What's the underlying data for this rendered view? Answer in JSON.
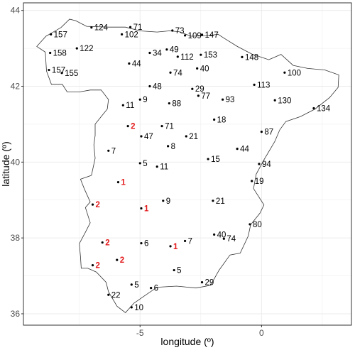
{
  "chart_data": {
    "type": "scatter",
    "title": "",
    "xlabel": "longitude (º)",
    "ylabel": "latitude (º)",
    "xlim": [
      -9.8,
      3.7
    ],
    "ylim": [
      35.7,
      44.2
    ],
    "xticks": [
      -5,
      0
    ],
    "yticks": [
      36,
      38,
      40,
      42,
      44
    ],
    "x_tick_labels": [
      "-5",
      "0"
    ],
    "y_tick_labels": [
      "36",
      "38",
      "40",
      "42",
      "44"
    ],
    "grid": true,
    "background": "#ffffff",
    "colors": {
      "point": "#000000",
      "label_default": "#000000",
      "label_highlight": "#e31a1c",
      "grid": "#ebebeb",
      "outline": "#333333"
    },
    "coastline": [
      [
        -8.87,
        43.32
      ],
      [
        -8.6,
        43.42
      ],
      [
        -8.25,
        43.55
      ],
      [
        -7.9,
        43.77
      ],
      [
        -7.65,
        43.73
      ],
      [
        -7.2,
        43.58
      ],
      [
        -6.3,
        43.56
      ],
      [
        -5.6,
        43.56
      ],
      [
        -5.0,
        43.46
      ],
      [
        -4.3,
        43.43
      ],
      [
        -3.8,
        43.46
      ],
      [
        -3.4,
        43.44
      ],
      [
        -2.9,
        43.32
      ],
      [
        -2.3,
        43.33
      ],
      [
        -1.79,
        43.37
      ],
      [
        -1.5,
        43.25
      ],
      [
        -1.0,
        43.05
      ],
      [
        -0.4,
        42.85
      ],
      [
        0.3,
        42.7
      ],
      [
        0.8,
        42.84
      ],
      [
        1.3,
        42.55
      ],
      [
        1.9,
        42.47
      ],
      [
        2.6,
        42.43
      ],
      [
        3.18,
        42.3
      ],
      [
        3.15,
        41.97
      ],
      [
        2.8,
        41.7
      ],
      [
        2.2,
        41.4
      ],
      [
        1.6,
        41.2
      ],
      [
        1.0,
        41.07
      ],
      [
        0.75,
        40.85
      ],
      [
        0.55,
        40.55
      ],
      [
        0.1,
        40.06
      ],
      [
        -0.22,
        39.68
      ],
      [
        -0.33,
        39.3
      ],
      [
        0.1,
        38.87
      ],
      [
        -0.07,
        38.65
      ],
      [
        -0.45,
        38.35
      ],
      [
        -0.55,
        38.05
      ],
      [
        -0.88,
        37.6
      ],
      [
        -1.3,
        37.55
      ],
      [
        -1.75,
        37.15
      ],
      [
        -2.1,
        36.75
      ],
      [
        -2.7,
        36.68
      ],
      [
        -3.5,
        36.73
      ],
      [
        -4.3,
        36.7
      ],
      [
        -4.8,
        36.48
      ],
      [
        -5.25,
        36.28
      ],
      [
        -5.6,
        36.03
      ],
      [
        -5.95,
        36.2
      ],
      [
        -6.3,
        36.58
      ],
      [
        -6.4,
        36.83
      ],
      [
        -6.8,
        37.1
      ],
      [
        -7.15,
        37.2
      ],
      [
        -7.42,
        37.2
      ],
      [
        -7.45,
        37.5
      ],
      [
        -7.5,
        37.85
      ],
      [
        -7.25,
        38.15
      ],
      [
        -7.05,
        38.4
      ],
      [
        -7.25,
        38.8
      ],
      [
        -7.05,
        38.95
      ],
      [
        -7.3,
        39.3
      ],
      [
        -7.45,
        39.55
      ],
      [
        -7.0,
        39.65
      ],
      [
        -6.85,
        40.1
      ],
      [
        -6.9,
        40.45
      ],
      [
        -6.85,
        40.7
      ],
      [
        -6.85,
        41.0
      ],
      [
        -6.6,
        41.2
      ],
      [
        -6.35,
        41.4
      ],
      [
        -6.3,
        41.65
      ],
      [
        -6.6,
        41.9
      ],
      [
        -7.05,
        41.9
      ],
      [
        -7.5,
        41.85
      ],
      [
        -8.0,
        41.85
      ],
      [
        -8.2,
        42.05
      ],
      [
        -8.65,
        42.05
      ],
      [
        -8.85,
        42.4
      ],
      [
        -8.9,
        42.9
      ],
      [
        -9.25,
        43.05
      ],
      [
        -8.87,
        43.32
      ]
    ],
    "points": [
      {
        "lon": -8.67,
        "lat": 43.37,
        "label": "157",
        "highlight": false
      },
      {
        "lon": -7.0,
        "lat": 43.55,
        "label": "124",
        "highlight": false
      },
      {
        "lon": -5.4,
        "lat": 43.56,
        "label": "71",
        "highlight": false
      },
      {
        "lon": -5.75,
        "lat": 43.37,
        "label": "102",
        "highlight": false
      },
      {
        "lon": -3.67,
        "lat": 43.47,
        "label": "73",
        "highlight": false
      },
      {
        "lon": -3.15,
        "lat": 43.34,
        "label": "109",
        "highlight": false
      },
      {
        "lon": -2.45,
        "lat": 43.36,
        "label": "147",
        "highlight": false
      },
      {
        "lon": -8.7,
        "lat": 42.88,
        "label": "158",
        "highlight": false
      },
      {
        "lon": -7.6,
        "lat": 43.0,
        "label": "122",
        "highlight": false
      },
      {
        "lon": -8.75,
        "lat": 42.43,
        "label": "157",
        "highlight": false
      },
      {
        "lon": -8.22,
        "lat": 42.35,
        "label": "155",
        "highlight": false
      },
      {
        "lon": -5.45,
        "lat": 42.6,
        "label": "44",
        "highlight": false
      },
      {
        "lon": -4.6,
        "lat": 42.88,
        "label": "34",
        "highlight": false
      },
      {
        "lon": -3.9,
        "lat": 42.97,
        "label": "49",
        "highlight": false
      },
      {
        "lon": -3.45,
        "lat": 42.78,
        "label": "112",
        "highlight": false
      },
      {
        "lon": -2.5,
        "lat": 42.83,
        "label": "153",
        "highlight": false
      },
      {
        "lon": -0.8,
        "lat": 42.77,
        "label": "148",
        "highlight": false
      },
      {
        "lon": -2.65,
        "lat": 42.47,
        "label": "40",
        "highlight": false
      },
      {
        "lon": -3.75,
        "lat": 42.36,
        "label": "74",
        "highlight": false
      },
      {
        "lon": 0.95,
        "lat": 42.36,
        "label": "100",
        "highlight": false
      },
      {
        "lon": -4.6,
        "lat": 42.0,
        "label": "48",
        "highlight": false
      },
      {
        "lon": -2.85,
        "lat": 41.93,
        "label": "29",
        "highlight": false
      },
      {
        "lon": -0.3,
        "lat": 42.04,
        "label": "113",
        "highlight": false
      },
      {
        "lon": -2.6,
        "lat": 41.75,
        "label": "77",
        "highlight": false
      },
      {
        "lon": -1.6,
        "lat": 41.65,
        "label": "93",
        "highlight": false
      },
      {
        "lon": 0.55,
        "lat": 41.63,
        "label": "130",
        "highlight": false
      },
      {
        "lon": -5.0,
        "lat": 41.65,
        "label": "9",
        "highlight": false
      },
      {
        "lon": -3.8,
        "lat": 41.55,
        "label": "88",
        "highlight": false
      },
      {
        "lon": -5.7,
        "lat": 41.5,
        "label": "11",
        "highlight": false
      },
      {
        "lon": 2.15,
        "lat": 41.42,
        "label": "134",
        "highlight": false
      },
      {
        "lon": -1.95,
        "lat": 41.12,
        "label": "18",
        "highlight": false
      },
      {
        "lon": -4.1,
        "lat": 40.95,
        "label": "71",
        "highlight": false
      },
      {
        "lon": -5.5,
        "lat": 40.95,
        "label": "2",
        "highlight": true
      },
      {
        "lon": 0.0,
        "lat": 40.8,
        "label": "87",
        "highlight": false
      },
      {
        "lon": -4.95,
        "lat": 40.68,
        "label": "47",
        "highlight": false
      },
      {
        "lon": -3.1,
        "lat": 40.68,
        "label": "21",
        "highlight": false
      },
      {
        "lon": -3.85,
        "lat": 40.42,
        "label": "8",
        "highlight": false
      },
      {
        "lon": -1.0,
        "lat": 40.35,
        "label": "44",
        "highlight": false
      },
      {
        "lon": -6.3,
        "lat": 40.3,
        "label": "7",
        "highlight": false
      },
      {
        "lon": -2.2,
        "lat": 40.08,
        "label": "15",
        "highlight": false
      },
      {
        "lon": -0.1,
        "lat": 39.95,
        "label": "94",
        "highlight": false
      },
      {
        "lon": -5.0,
        "lat": 39.97,
        "label": "5",
        "highlight": false
      },
      {
        "lon": -4.3,
        "lat": 39.88,
        "label": "11",
        "highlight": false
      },
      {
        "lon": -0.4,
        "lat": 39.5,
        "label": "19",
        "highlight": false
      },
      {
        "lon": -5.9,
        "lat": 39.47,
        "label": "1",
        "highlight": true
      },
      {
        "lon": -4.05,
        "lat": 38.98,
        "label": "9",
        "highlight": false
      },
      {
        "lon": -2.0,
        "lat": 38.98,
        "label": "21",
        "highlight": false
      },
      {
        "lon": -6.95,
        "lat": 38.88,
        "label": "2",
        "highlight": true
      },
      {
        "lon": -4.95,
        "lat": 38.78,
        "label": "1",
        "highlight": true
      },
      {
        "lon": -0.48,
        "lat": 38.36,
        "label": "80",
        "highlight": false
      },
      {
        "lon": -1.95,
        "lat": 38.09,
        "label": "40",
        "highlight": false
      },
      {
        "lon": -1.55,
        "lat": 37.98,
        "label": "74",
        "highlight": false
      },
      {
        "lon": -6.55,
        "lat": 37.88,
        "label": "2",
        "highlight": true
      },
      {
        "lon": -4.95,
        "lat": 37.86,
        "label": "6",
        "highlight": false
      },
      {
        "lon": -3.15,
        "lat": 37.92,
        "label": "7",
        "highlight": false
      },
      {
        "lon": -3.75,
        "lat": 37.78,
        "label": "1",
        "highlight": true
      },
      {
        "lon": -5.95,
        "lat": 37.42,
        "label": "2",
        "highlight": true
      },
      {
        "lon": -6.95,
        "lat": 37.28,
        "label": "2",
        "highlight": true
      },
      {
        "lon": -3.6,
        "lat": 37.15,
        "label": "5",
        "highlight": false
      },
      {
        "lon": -2.45,
        "lat": 36.83,
        "label": "29",
        "highlight": false
      },
      {
        "lon": -5.35,
        "lat": 36.77,
        "label": "5",
        "highlight": false
      },
      {
        "lon": -4.55,
        "lat": 36.68,
        "label": "6",
        "highlight": false
      },
      {
        "lon": -6.3,
        "lat": 36.5,
        "label": "22",
        "highlight": false
      },
      {
        "lon": -5.35,
        "lat": 36.17,
        "label": "10",
        "highlight": false
      }
    ]
  }
}
